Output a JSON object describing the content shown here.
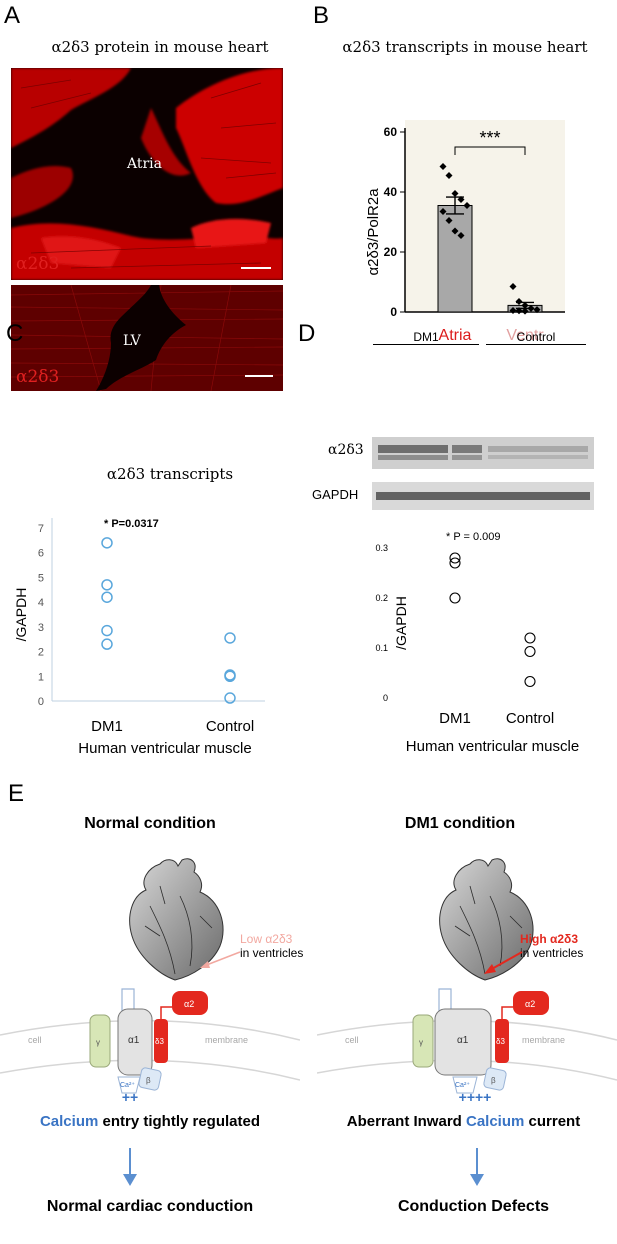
{
  "panelA": {
    "letter": "A",
    "title": "α2δ3 protein in mouse heart",
    "top_image": {
      "label": "Atria",
      "marker": "α2δ3"
    },
    "bottom_image": {
      "label": "LV",
      "marker": "α2δ3"
    }
  },
  "panelB": {
    "letter": "B",
    "title": "α2δ3 transcripts in mouse heart",
    "significance": "***"
  },
  "panelC": {
    "letter": "C",
    "title": "α2δ3 transcripts",
    "pvalue": "* P=0.0317",
    "xcaption": "Human ventricular muscle"
  },
  "panelD": {
    "letter": "D",
    "blot_labels": {
      "group1": "DM1",
      "group2": "Control",
      "row1": "α2δ3",
      "row2": "GAPDH"
    },
    "pvalue": "* P = 0.009",
    "xcaption": "Human ventricular muscle"
  },
  "panelE": {
    "letter": "E",
    "left": {
      "title": "Normal condition",
      "level_word": "Low α2δ3",
      "level_rest": "in ventricles",
      "ion_symbol": "++",
      "statement_blue": "Calcium",
      "statement_rest": " entry tightly regulated",
      "outcome": "Normal cardiac conduction"
    },
    "right": {
      "title": "DM1 condition",
      "level_word": "High α2δ3",
      "level_rest": "in ventricles",
      "ion_symbol": "++++",
      "statement_pre": "Aberrant Inward ",
      "statement_blue": "Calcium",
      "statement_rest": " current",
      "outcome": "Conduction Defects"
    },
    "channel_labels": {
      "a1": "α1",
      "a2": "α2",
      "d3": "δ3",
      "b": "β",
      "g": "γ",
      "ca": "Ca²⁺",
      "cell": "cell",
      "membrane": "membrane"
    }
  },
  "chart_data": [
    {
      "type": "bar",
      "panel": "B",
      "categories": [
        "Atria",
        "Ventr"
      ],
      "values": [
        35.5,
        2.2
      ],
      "errors": [
        2.8,
        1.0
      ],
      "points": [
        [
          48.5,
          45.5,
          39.5,
          37.5,
          35.5,
          33.5,
          30.5,
          27,
          25.5
        ],
        [
          8.5,
          3.5,
          2.2,
          1.2,
          0.8,
          0.5,
          0.4,
          0.3
        ]
      ],
      "ylabel": "α2δ3/PolR2a",
      "yticks": [
        0,
        20,
        40,
        60
      ],
      "ylim": [
        0,
        60
      ],
      "category_colors": [
        "#dc1c1c",
        "#e2a0a0"
      ]
    },
    {
      "type": "scatter",
      "panel": "C",
      "categories": [
        "DM1",
        "Control"
      ],
      "points": [
        [
          6.4,
          4.7,
          4.2,
          2.85,
          2.3
        ],
        [
          2.55,
          1.05,
          1.0,
          0.12
        ]
      ],
      "ylabel": "/GAPDH",
      "yticks": [
        0,
        1,
        2,
        3,
        4,
        5,
        6,
        7
      ],
      "ylim": [
        0,
        7
      ]
    },
    {
      "type": "scatter",
      "panel": "D",
      "categories": [
        "DM1",
        "Control"
      ],
      "points": [
        [
          0.28,
          0.27,
          0.2
        ],
        [
          0.12,
          0.093,
          0.033
        ]
      ],
      "ylabel": "/GAPDH",
      "yticks": [
        "0",
        "0.1",
        "0.2",
        "0.3"
      ],
      "ylim": [
        0,
        0.3
      ]
    }
  ]
}
